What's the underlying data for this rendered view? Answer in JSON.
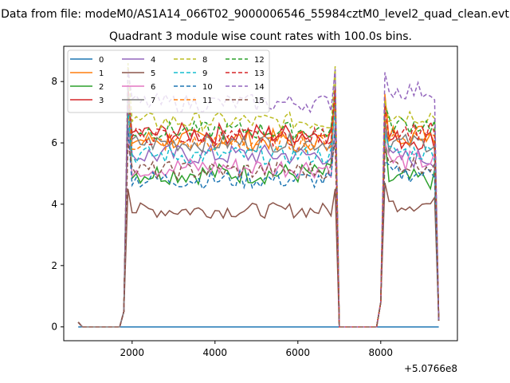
{
  "suptitle": "Data from file: modeM0/AS1A14_066T02_9000006546_55984cztM0_level2_quad_clean.evt",
  "chart_data": {
    "type": "line",
    "title": "Quadrant 3 module wise count rates with 100.0s bins.",
    "xlabel": "",
    "ylabel": "",
    "x_offset_label": "+5.0766e8",
    "xlim": [
      350,
      9850
    ],
    "ylim": [
      -0.45,
      9.15
    ],
    "xticks": [
      2000,
      4000,
      6000,
      8000
    ],
    "xtick_labels": [
      "2000",
      "4000",
      "6000",
      "8000"
    ],
    "yticks": [
      0,
      2,
      4,
      6,
      8
    ],
    "ytick_labels": [
      "0",
      "2",
      "4",
      "6",
      "8"
    ],
    "grid": false,
    "legend": {
      "placement": "top-left",
      "columns": 4
    },
    "x_start": 700,
    "x_step": 100,
    "segments": [
      {
        "on_start": 2000,
        "on_end": 6900,
        "off_end": 7000,
        "rise_start": 1800,
        "end_values_low": 0
      },
      {
        "on_start": 8100,
        "on_end": 9400,
        "rise_start": 7900
      }
    ],
    "series": [
      {
        "name": "0",
        "color": "#1f77b4",
        "dash": "solid",
        "level1": 0.0,
        "level2": 0.0,
        "noise": 0.0,
        "peak": 0.0,
        "peak2": 0.0
      },
      {
        "name": "1",
        "color": "#ff7f0e",
        "dash": "solid",
        "level1": 6.1,
        "level2": 6.3,
        "noise": 0.35,
        "peak": 7.6,
        "peak2": 7.6
      },
      {
        "name": "2",
        "color": "#2ca02c",
        "dash": "solid",
        "level1": 5.0,
        "level2": 4.8,
        "noise": 0.35,
        "peak": 7.7,
        "peak2": 6.2
      },
      {
        "name": "3",
        "color": "#d62728",
        "dash": "solid",
        "level1": 6.3,
        "level2": 6.1,
        "noise": 0.35,
        "peak": 7.4,
        "peak2": 6.6
      },
      {
        "name": "4",
        "color": "#9467bd",
        "dash": "solid",
        "level1": 5.6,
        "level2": 5.5,
        "noise": 0.35,
        "peak": 7.8,
        "peak2": 6.4
      },
      {
        "name": "5",
        "color": "#8c564b",
        "dash": "solid",
        "level1": 3.8,
        "level2": 4.0,
        "noise": 0.25,
        "peak": 4.5,
        "peak2": 4.7
      },
      {
        "name": "6",
        "color": "#e377c2",
        "dash": "solid",
        "level1": 5.2,
        "level2": 5.4,
        "noise": 0.35,
        "peak": 6.6,
        "peak2": 6.0
      },
      {
        "name": "7",
        "color": "#7f7f7f",
        "dash": "solid",
        "level1": 6.0,
        "level2": 6.0,
        "noise": 0.3,
        "peak": 7.9,
        "peak2": 6.8
      },
      {
        "name": "8",
        "color": "#bcbd22",
        "dash": "dashed",
        "level1": 6.7,
        "level2": 6.9,
        "noise": 0.3,
        "peak": 8.6,
        "peak2": 7.4
      },
      {
        "name": "9",
        "color": "#17becf",
        "dash": "dashed",
        "level1": 5.6,
        "level2": 5.7,
        "noise": 0.3,
        "peak": 7.0,
        "peak2": 6.3
      },
      {
        "name": "10",
        "color": "#1f77b4",
        "dash": "dashed",
        "level1": 4.8,
        "level2": 5.0,
        "noise": 0.3,
        "peak": 6.5,
        "peak2": 5.4
      },
      {
        "name": "11",
        "color": "#ff7f0e",
        "dash": "dashed",
        "level1": 6.0,
        "level2": 6.2,
        "noise": 0.3,
        "peak": 7.6,
        "peak2": 7.0
      },
      {
        "name": "12",
        "color": "#2ca02c",
        "dash": "dashed",
        "level1": 6.4,
        "level2": 6.6,
        "noise": 0.3,
        "peak": 7.6,
        "peak2": 7.2
      },
      {
        "name": "13",
        "color": "#d62728",
        "dash": "dashed",
        "level1": 6.2,
        "level2": 6.4,
        "noise": 0.3,
        "peak": 7.8,
        "peak2": 7.2
      },
      {
        "name": "14",
        "color": "#9467bd",
        "dash": "dashed",
        "level1": 7.3,
        "level2": 7.7,
        "noise": 0.3,
        "peak": 8.4,
        "peak2": 8.3
      },
      {
        "name": "15",
        "color": "#8c564b",
        "dash": "dashed",
        "level1": 5.1,
        "level2": 5.3,
        "noise": 0.3,
        "peak": 6.0,
        "peak2": 5.8
      }
    ]
  }
}
